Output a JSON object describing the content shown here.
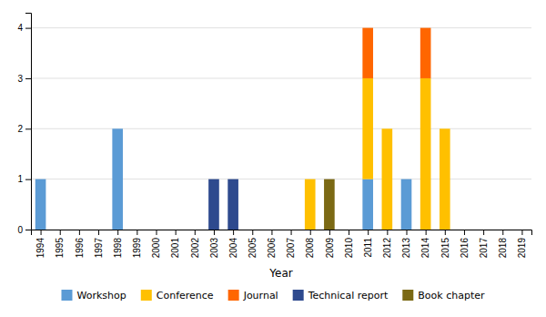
{
  "chart_data": {
    "type": "bar",
    "stacked": true,
    "xlabel": "Year",
    "x": [
      1994,
      1995,
      1996,
      1997,
      1998,
      1999,
      2000,
      2001,
      2002,
      2003,
      2004,
      2005,
      2006,
      2007,
      2008,
      2009,
      2010,
      2011,
      2012,
      2013,
      2014,
      2015,
      2016,
      2017,
      2018,
      2019
    ],
    "series": [
      {
        "name": "Workshop",
        "color": "#5B9BD5",
        "values": [
          1,
          0,
          0,
          0,
          2,
          0,
          0,
          0,
          0,
          0,
          0,
          0,
          0,
          0,
          0,
          0,
          0,
          1,
          0,
          1,
          0,
          0,
          0,
          0,
          0,
          0
        ]
      },
      {
        "name": "Conference",
        "color": "#FFC000",
        "values": [
          0,
          0,
          0,
          0,
          0,
          0,
          0,
          0,
          0,
          0,
          0,
          0,
          0,
          0,
          1,
          0,
          0,
          2,
          2,
          0,
          3,
          2,
          0,
          0,
          0,
          0
        ]
      },
      {
        "name": "Journal",
        "color": "#FF6600",
        "values": [
          0,
          0,
          0,
          0,
          0,
          0,
          0,
          0,
          0,
          0,
          0,
          0,
          0,
          0,
          0,
          0,
          0,
          1,
          0,
          0,
          1,
          0,
          0,
          0,
          0,
          0
        ]
      },
      {
        "name": "Technical report",
        "color": "#2E4A8E",
        "values": [
          0,
          0,
          0,
          0,
          0,
          0,
          0,
          0,
          0,
          1,
          1,
          0,
          0,
          0,
          0,
          0,
          0,
          0,
          0,
          0,
          0,
          0,
          0,
          0,
          0,
          0
        ]
      },
      {
        "name": "Book chapter",
        "color": "#7B6914",
        "values": [
          0,
          0,
          0,
          0,
          0,
          0,
          0,
          0,
          0,
          0,
          0,
          0,
          0,
          0,
          0,
          1,
          0,
          0,
          0,
          0,
          0,
          0,
          0,
          0,
          0,
          0
        ]
      }
    ],
    "xlim": [
      1993.5,
      2019.5
    ],
    "xticks": [
      1994,
      1995,
      1996,
      1997,
      1998,
      1999,
      2000,
      2001,
      2002,
      2003,
      2004,
      2005,
      2006,
      2007,
      2008,
      2009,
      2010,
      2011,
      2012,
      2013,
      2014,
      2015,
      2016,
      2017,
      2018,
      2019
    ],
    "ylim": [
      0,
      4.3
    ],
    "yticks": [
      0,
      1,
      2,
      3,
      4
    ],
    "grid": true,
    "legend": "bottom"
  }
}
